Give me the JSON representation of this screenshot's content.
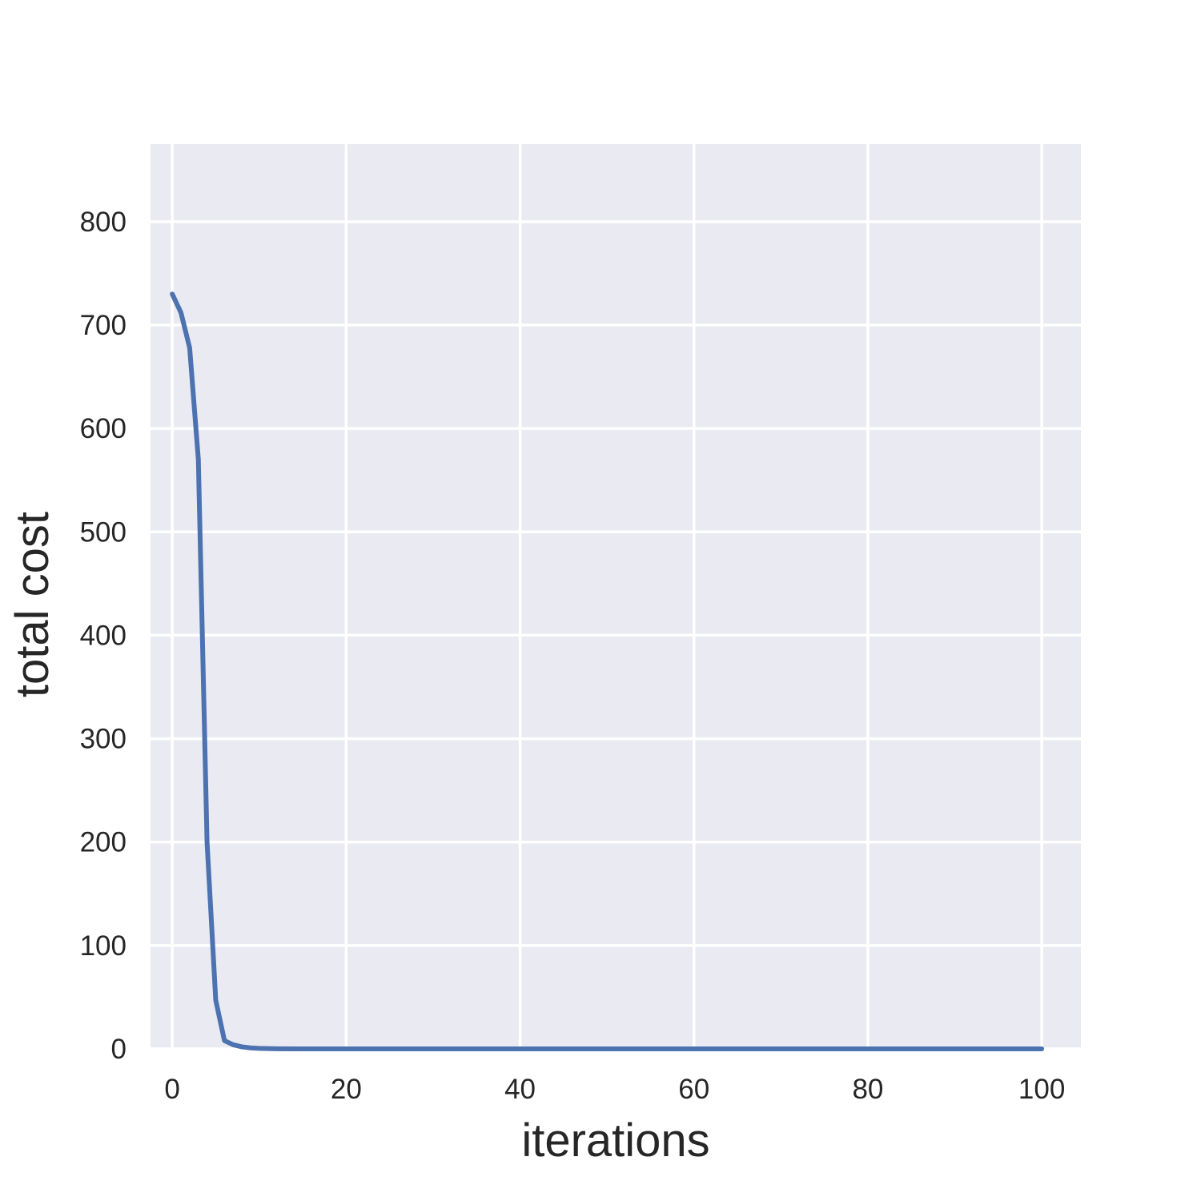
{
  "chart_data": {
    "type": "line",
    "title": "",
    "xlabel": "iterations",
    "ylabel": "total cost",
    "xlim": [
      -2.5,
      104.5
    ],
    "ylim": [
      0,
      875
    ],
    "xticks": [
      0,
      20,
      40,
      60,
      80,
      100
    ],
    "yticks": [
      0,
      100,
      200,
      300,
      400,
      500,
      600,
      700,
      800
    ],
    "grid": true,
    "legend": "none",
    "colors": {
      "background": "#EAEAF2",
      "grid": "#FFFFFF",
      "line": "#4C72B0",
      "text": "#262626"
    },
    "series": [
      {
        "x": [
          0,
          1,
          2,
          3,
          4,
          5,
          6,
          7,
          8,
          9,
          10,
          11,
          12,
          14,
          20,
          30,
          40,
          50,
          60,
          70,
          80,
          90,
          100
        ],
        "y": [
          730,
          712,
          678,
          570,
          200,
          47,
          8,
          4,
          2,
          1,
          0.5,
          0.3,
          0.1,
          0,
          0,
          0,
          0,
          0,
          0,
          0,
          0,
          0,
          0
        ]
      }
    ]
  }
}
